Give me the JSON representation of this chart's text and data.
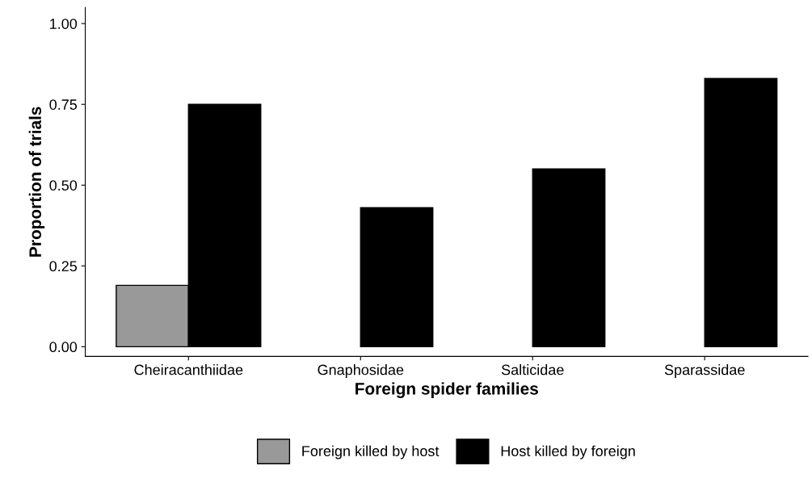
{
  "chart_data": {
    "type": "bar",
    "xlabel": "Foreign spider families",
    "ylabel": "Proportion of trials",
    "categories": [
      "Cheiracanthiidae",
      "Gnaphosidae",
      "Salticidae",
      "Sparassidae"
    ],
    "series": [
      {
        "name": "Foreign killed by host",
        "color": "#999999",
        "values": [
          0.19,
          null,
          null,
          null
        ]
      },
      {
        "name": "Host killed by foreign",
        "color": "#000000",
        "values": [
          0.75,
          0.43,
          0.55,
          0.83
        ]
      }
    ],
    "ylim": [
      -0.03,
      1.05
    ],
    "yticks": [
      {
        "value": 0,
        "label": "0.00"
      },
      {
        "value": 0.25,
        "label": "0.25"
      },
      {
        "value": 0.5,
        "label": "0.50"
      },
      {
        "value": 0.75,
        "label": "0.75"
      },
      {
        "value": 1,
        "label": "1.00"
      }
    ],
    "grid": false,
    "legend": "bottom"
  }
}
